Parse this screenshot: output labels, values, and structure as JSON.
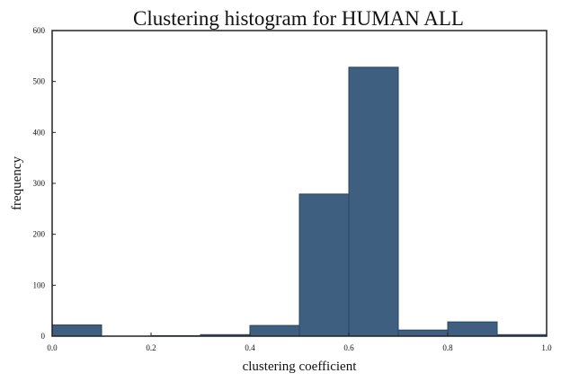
{
  "chart_data": {
    "type": "bar",
    "title": "Clustering histogram for HUMAN  ALL",
    "xlabel": "clustering coefficient",
    "ylabel": "frequency",
    "xlim": [
      0.0,
      1.0
    ],
    "ylim": [
      0,
      600
    ],
    "xticks": [
      "0.0",
      "0.2",
      "0.4",
      "0.6",
      "0.8",
      "1.0"
    ],
    "yticks": [
      "0",
      "100",
      "200",
      "300",
      "400",
      "500",
      "600"
    ],
    "bins": [
      {
        "x0": 0.0,
        "x1": 0.1,
        "value": 22
      },
      {
        "x0": 0.1,
        "x1": 0.2,
        "value": 0
      },
      {
        "x0": 0.2,
        "x1": 0.3,
        "value": 1
      },
      {
        "x0": 0.3,
        "x1": 0.4,
        "value": 3
      },
      {
        "x0": 0.4,
        "x1": 0.5,
        "value": 21
      },
      {
        "x0": 0.5,
        "x1": 0.6,
        "value": 279
      },
      {
        "x0": 0.6,
        "x1": 0.7,
        "value": 528
      },
      {
        "x0": 0.7,
        "x1": 0.8,
        "value": 12
      },
      {
        "x0": 0.8,
        "x1": 0.9,
        "value": 28
      },
      {
        "x0": 0.9,
        "x1": 1.0,
        "value": 3
      }
    ],
    "grid": false,
    "bar_color": "#3e5f80"
  }
}
